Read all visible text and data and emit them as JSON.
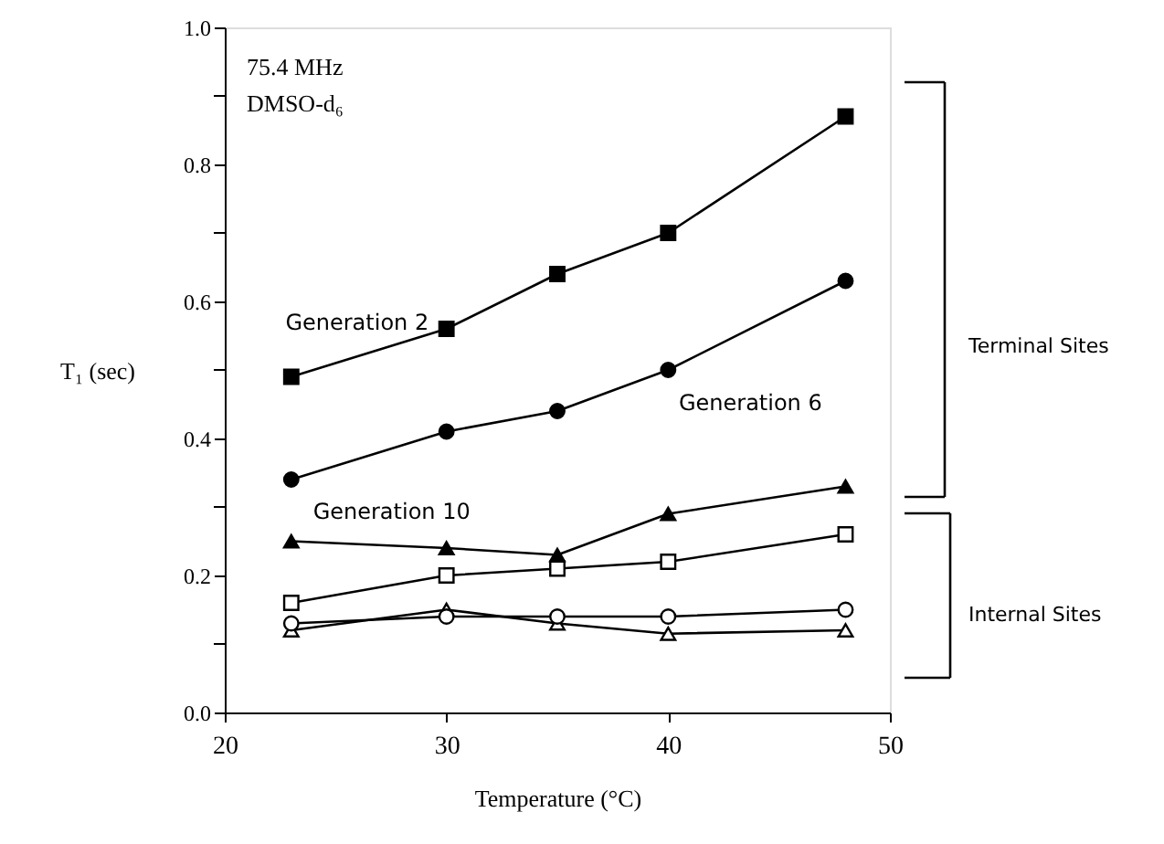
{
  "chart_data": {
    "type": "line",
    "xlabel": "Temperature (°C)",
    "ylabel": "T₁ (sec)",
    "x": [
      23,
      30,
      35,
      40,
      48
    ],
    "xlim": [
      20,
      50
    ],
    "xticks": [
      20,
      30,
      40,
      50
    ],
    "ylim": [
      0,
      1
    ],
    "yticks": [
      {
        "value": 0,
        "label": "0.0"
      },
      {
        "value": 0.1,
        "label": null
      },
      0.2,
      {
        "value": 0.3,
        "label": null
      },
      0.4,
      {
        "value": 0.5,
        "label": null
      },
      0.6,
      {
        "value": 0.7,
        "label": null
      },
      0.8,
      {
        "value": 0.9,
        "label": null
      },
      {
        "value": 1,
        "label": "1.0"
      }
    ],
    "grid": false,
    "line_style": "solid",
    "series": [
      {
        "name": "Generation 2",
        "color": "#000000",
        "marker": "square",
        "values": [
          0.49,
          0.56,
          0.64,
          0.7,
          0.87
        ]
      },
      {
        "name": "Generation 6",
        "color": "#000000",
        "marker": "circle",
        "values": [
          0.34,
          0.41,
          0.44,
          0.5,
          0.63
        ]
      },
      {
        "name": "Generation 10",
        "color": "#000000",
        "marker": "triangle",
        "values": [
          0.25,
          0.24,
          0.23,
          0.29,
          0.33
        ]
      },
      {
        "color": "#000000",
        "marker": "square",
        "values": [
          0.16,
          0.2,
          0.21,
          0.22,
          0.26
        ]
      },
      {
        "color": "#000000",
        "marker": "circle",
        "values": [
          0.13,
          0.14,
          0.14,
          0.14,
          0.15
        ]
      },
      {
        "color": "#000000",
        "marker": "triangle",
        "values": [
          0.12,
          0.15,
          0.13,
          0.115,
          0.12
        ]
      }
    ],
    "annotations": [
      "75.4 MHz",
      "DMSO-d₆",
      "Terminal Sites",
      "Internal Sites"
    ]
  }
}
